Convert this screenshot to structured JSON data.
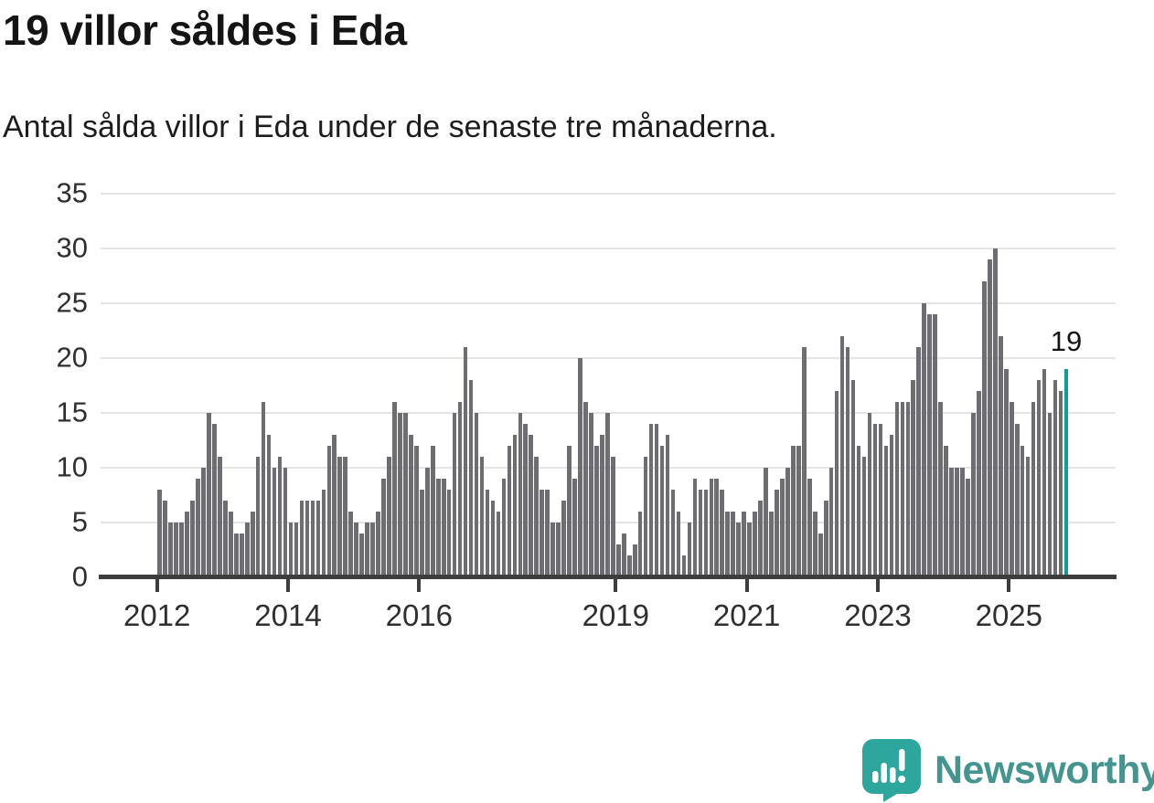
{
  "header": {
    "title": "19 villor såldes i Eda",
    "subtitle": "Antal sålda villor i Eda under de senaste tre månaderna."
  },
  "chart_data": {
    "type": "bar",
    "title": "19 villor såldes i Eda",
    "subtitle": "Antal sålda villor i Eda under de senaste tre månaderna.",
    "frequency": "monthly",
    "x_start": "2012-01",
    "x_end": "2025-11",
    "values": [
      8,
      7,
      5,
      5,
      5,
      6,
      7,
      9,
      10,
      15,
      14,
      11,
      7,
      6,
      4,
      4,
      5,
      6,
      11,
      16,
      13,
      10,
      11,
      10,
      5,
      5,
      7,
      7,
      7,
      7,
      8,
      12,
      13,
      11,
      11,
      6,
      5,
      4,
      5,
      5,
      6,
      9,
      11,
      16,
      15,
      15,
      13,
      12,
      8,
      10,
      12,
      9,
      9,
      8,
      15,
      16,
      21,
      18,
      15,
      11,
      8,
      7,
      6,
      9,
      12,
      13,
      15,
      14,
      13,
      11,
      8,
      8,
      5,
      5,
      7,
      12,
      9,
      20,
      16,
      15,
      12,
      13,
      15,
      11,
      3,
      4,
      2,
      3,
      6,
      11,
      14,
      14,
      12,
      13,
      8,
      6,
      2,
      5,
      9,
      8,
      8,
      9,
      9,
      8,
      6,
      6,
      5,
      6,
      5,
      6,
      7,
      10,
      6,
      8,
      9,
      10,
      12,
      12,
      21,
      9,
      6,
      4,
      7,
      10,
      17,
      22,
      21,
      18,
      12,
      11,
      15,
      14,
      14,
      12,
      13,
      16,
      16,
      16,
      18,
      21,
      25,
      24,
      24,
      16,
      12,
      10,
      10,
      10,
      9,
      15,
      17,
      27,
      29,
      30,
      22,
      19,
      16,
      14,
      12,
      11,
      16,
      18,
      19,
      15,
      18,
      17,
      19
    ],
    "highlight_last": true,
    "bar_color": "#6d6d72",
    "highlight_color": "#0f9e97",
    "annotation": {
      "text": "19",
      "applies_to": "last-bar"
    },
    "y_ticks": [
      0,
      5,
      10,
      15,
      20,
      25,
      30,
      35
    ],
    "ylim": [
      0,
      35
    ],
    "x_tick_labels": [
      "2012",
      "2014",
      "2016",
      "2019",
      "2021",
      "2023",
      "2025"
    ],
    "grid": "horizontal",
    "legend": "none"
  },
  "footer": {
    "logo_text": "Newsworthy",
    "logo_icon": "speech-bubble-bar-chart-icon",
    "logo_text_color": "#44948f",
    "logo_icon_color": "#2da69e"
  }
}
